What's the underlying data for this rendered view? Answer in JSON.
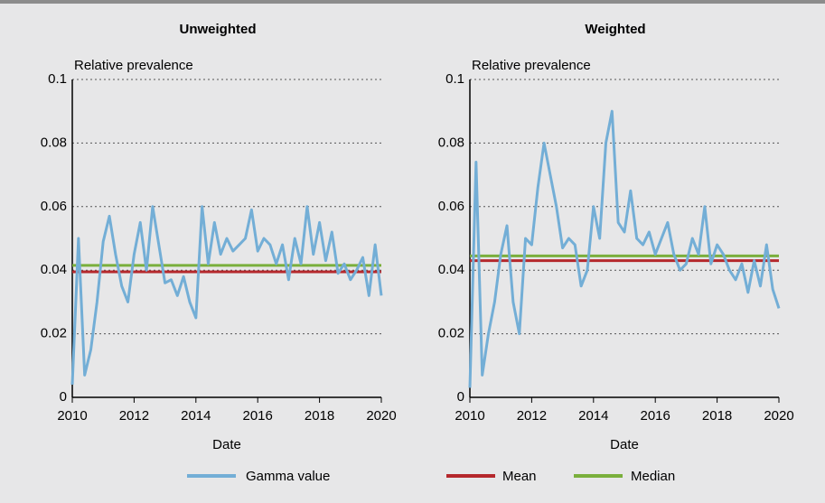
{
  "chart_data": [
    {
      "type": "line",
      "title": "Unweighted",
      "y_label": "Relative prevalence",
      "x_label": "Date",
      "x": [
        2010,
        2010.2,
        2010.4,
        2010.6,
        2010.8,
        2011,
        2011.2,
        2011.4,
        2011.6,
        2011.8,
        2012,
        2012.2,
        2012.4,
        2012.6,
        2012.8,
        2013,
        2013.2,
        2013.4,
        2013.6,
        2013.8,
        2014,
        2014.2,
        2014.4,
        2014.6,
        2014.8,
        2015,
        2015.2,
        2015.4,
        2015.6,
        2015.8,
        2016,
        2016.2,
        2016.4,
        2016.6,
        2016.8,
        2017,
        2017.2,
        2017.4,
        2017.6,
        2017.8,
        2018,
        2018.2,
        2018.4,
        2018.6,
        2018.8,
        2019,
        2019.2,
        2019.4,
        2019.6,
        2019.8,
        2020
      ],
      "series": [
        {
          "name": "Gamma value",
          "color": "#73aed6",
          "values": [
            0.004,
            0.05,
            0.007,
            0.015,
            0.03,
            0.049,
            0.057,
            0.045,
            0.035,
            0.03,
            0.045,
            0.055,
            0.04,
            0.06,
            0.048,
            0.036,
            0.037,
            0.032,
            0.038,
            0.03,
            0.025,
            0.06,
            0.042,
            0.055,
            0.045,
            0.05,
            0.046,
            0.048,
            0.05,
            0.059,
            0.046,
            0.05,
            0.048,
            0.042,
            0.048,
            0.037,
            0.05,
            0.042,
            0.06,
            0.045,
            0.055,
            0.043,
            0.052,
            0.039,
            0.042,
            0.037,
            0.04,
            0.044,
            0.032,
            0.048,
            0.032
          ]
        },
        {
          "name": "Mean",
          "color": "#b5282c",
          "x": [
            2010,
            2020
          ],
          "values": [
            0.0395,
            0.0395
          ]
        },
        {
          "name": "Median",
          "color": "#7aaf3c",
          "x": [
            2010,
            2020
          ],
          "values": [
            0.0415,
            0.0415
          ]
        }
      ],
      "xlim": [
        2010,
        2020
      ],
      "xticks": [
        2010,
        2012,
        2014,
        2016,
        2018,
        2020
      ],
      "ylim": [
        0,
        0.1
      ],
      "yticks": [
        0,
        0.02,
        0.04,
        0.06,
        0.08,
        0.1
      ],
      "grid": true
    },
    {
      "type": "line",
      "title": "Weighted",
      "y_label": "Relative prevalence",
      "x_label": "Date",
      "x": [
        2010,
        2010.2,
        2010.4,
        2010.6,
        2010.8,
        2011,
        2011.2,
        2011.4,
        2011.6,
        2011.8,
        2012,
        2012.2,
        2012.4,
        2012.6,
        2012.8,
        2013,
        2013.2,
        2013.4,
        2013.6,
        2013.8,
        2014,
        2014.2,
        2014.4,
        2014.6,
        2014.8,
        2015,
        2015.2,
        2015.4,
        2015.6,
        2015.8,
        2016,
        2016.2,
        2016.4,
        2016.6,
        2016.8,
        2017,
        2017.2,
        2017.4,
        2017.6,
        2017.8,
        2018,
        2018.2,
        2018.4,
        2018.6,
        2018.8,
        2019,
        2019.2,
        2019.4,
        2019.6,
        2019.8,
        2020
      ],
      "series": [
        {
          "name": "Gamma value",
          "color": "#73aed6",
          "values": [
            0.003,
            0.074,
            0.007,
            0.02,
            0.03,
            0.045,
            0.054,
            0.03,
            0.02,
            0.05,
            0.048,
            0.066,
            0.08,
            0.07,
            0.06,
            0.047,
            0.05,
            0.048,
            0.035,
            0.04,
            0.06,
            0.05,
            0.08,
            0.09,
            0.055,
            0.052,
            0.065,
            0.05,
            0.048,
            0.052,
            0.045,
            0.05,
            0.055,
            0.045,
            0.04,
            0.042,
            0.05,
            0.045,
            0.06,
            0.042,
            0.048,
            0.045,
            0.04,
            0.037,
            0.042,
            0.033,
            0.043,
            0.035,
            0.048,
            0.034,
            0.028
          ]
        },
        {
          "name": "Mean",
          "color": "#b5282c",
          "x": [
            2010,
            2020
          ],
          "values": [
            0.043,
            0.043
          ]
        },
        {
          "name": "Median",
          "color": "#7aaf3c",
          "x": [
            2010,
            2020
          ],
          "values": [
            0.0445,
            0.0445
          ]
        }
      ],
      "xlim": [
        2010,
        2020
      ],
      "xticks": [
        2010,
        2012,
        2014,
        2016,
        2018,
        2020
      ],
      "ylim": [
        0,
        0.1
      ],
      "yticks": [
        0,
        0.02,
        0.04,
        0.06,
        0.08,
        0.1
      ],
      "grid": true
    }
  ]
}
